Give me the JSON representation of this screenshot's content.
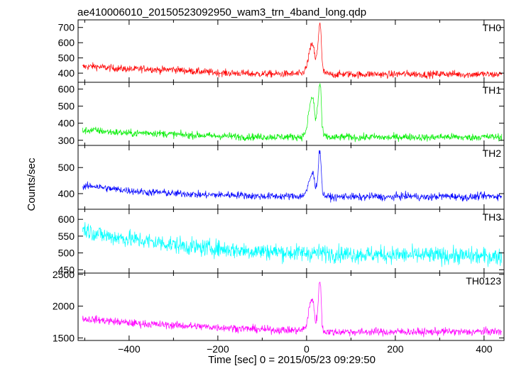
{
  "chart_data": {
    "type": "line",
    "title": "ae410006010_20150523092950_wam3_trn_4band_long.qdp",
    "xlabel": "Time [sec] 0 = 2015/05/23 09:29:50",
    "ylabel": "Counts/sec",
    "xlim": [
      -515,
      445
    ],
    "xticks": [
      -400,
      -200,
      0,
      200,
      400
    ],
    "grid": false,
    "panels": [
      {
        "name": "TH0",
        "color": "#ff0000",
        "ylim": [
          340,
          750
        ],
        "yticks": [
          400,
          500,
          600,
          700
        ],
        "x": [
          -510,
          -480,
          -450,
          -420,
          -390,
          -360,
          -330,
          -300,
          -270,
          -240,
          -210,
          -180,
          -150,
          -120,
          -90,
          -60,
          -30,
          -10,
          0,
          5,
          10,
          15,
          20,
          25,
          28,
          30,
          32,
          35,
          38,
          45,
          60,
          90,
          120,
          150,
          180,
          210,
          240,
          270,
          300,
          330,
          360,
          390,
          420,
          440
        ],
        "y": [
          440,
          445,
          435,
          430,
          425,
          430,
          420,
          425,
          415,
          410,
          405,
          400,
          400,
          395,
          395,
          395,
          395,
          395,
          440,
          520,
          580,
          590,
          480,
          560,
          700,
          740,
          690,
          470,
          410,
          395,
          390,
          395,
          390,
          395,
          390,
          395,
          395,
          390,
          395,
          395,
          390,
          395,
          390,
          395
        ]
      },
      {
        "name": "TH1",
        "color": "#00ee00",
        "ylim": [
          270,
          640
        ],
        "yticks": [
          300,
          400,
          500,
          600
        ],
        "x": [
          -510,
          -480,
          -450,
          -420,
          -390,
          -360,
          -330,
          -300,
          -270,
          -240,
          -210,
          -180,
          -150,
          -120,
          -90,
          -60,
          -30,
          -10,
          0,
          5,
          10,
          15,
          20,
          25,
          28,
          30,
          32,
          35,
          38,
          45,
          60,
          90,
          120,
          150,
          180,
          210,
          240,
          270,
          300,
          330,
          360,
          390,
          420,
          440
        ],
        "y": [
          355,
          360,
          350,
          345,
          340,
          345,
          340,
          335,
          330,
          330,
          325,
          325,
          320,
          320,
          320,
          320,
          320,
          320,
          360,
          470,
          540,
          550,
          410,
          500,
          610,
          630,
          600,
          380,
          330,
          320,
          315,
          320,
          315,
          320,
          315,
          320,
          320,
          315,
          320,
          320,
          315,
          320,
          320,
          320
        ]
      },
      {
        "name": "TH2",
        "color": "#0000ff",
        "ylim": [
          340,
          585
        ],
        "yticks": [
          400,
          500
        ],
        "x": [
          -510,
          -480,
          -450,
          -420,
          -390,
          -360,
          -330,
          -300,
          -270,
          -240,
          -210,
          -180,
          -150,
          -120,
          -90,
          -60,
          -30,
          -10,
          0,
          5,
          10,
          15,
          20,
          25,
          28,
          30,
          32,
          35,
          38,
          45,
          60,
          90,
          120,
          150,
          180,
          210,
          240,
          270,
          300,
          330,
          360,
          390,
          420,
          440
        ],
        "y": [
          425,
          430,
          420,
          415,
          410,
          405,
          405,
          400,
          400,
          395,
          395,
          395,
          395,
          390,
          390,
          390,
          390,
          390,
          410,
          440,
          470,
          480,
          420,
          460,
          550,
          575,
          530,
          420,
          395,
          390,
          385,
          390,
          385,
          390,
          385,
          390,
          390,
          385,
          390,
          390,
          385,
          390,
          390,
          390
        ]
      },
      {
        "name": "TH3",
        "color": "#00ffff",
        "ylim": [
          440,
          630
        ],
        "yticks": [
          450,
          500,
          550,
          600
        ],
        "x": [
          -510,
          -480,
          -450,
          -420,
          -390,
          -360,
          -330,
          -300,
          -270,
          -240,
          -210,
          -180,
          -150,
          -120,
          -90,
          -60,
          -30,
          0,
          30,
          60,
          90,
          120,
          150,
          180,
          210,
          240,
          270,
          300,
          330,
          360,
          390,
          420,
          440
        ],
        "y": [
          575,
          560,
          550,
          545,
          540,
          535,
          530,
          525,
          520,
          515,
          515,
          510,
          508,
          505,
          505,
          503,
          500,
          500,
          500,
          498,
          497,
          496,
          495,
          495,
          494,
          493,
          493,
          492,
          492,
          491,
          490,
          490,
          490
        ]
      },
      {
        "name": "TH0123",
        "color": "#ff00ff",
        "ylim": [
          1460,
          2520
        ],
        "yticks": [
          1500,
          2000,
          2500
        ],
        "x": [
          -510,
          -480,
          -450,
          -420,
          -390,
          -360,
          -330,
          -300,
          -270,
          -240,
          -210,
          -180,
          -150,
          -120,
          -90,
          -60,
          -30,
          -10,
          0,
          5,
          10,
          15,
          20,
          25,
          28,
          30,
          32,
          35,
          38,
          45,
          60,
          90,
          120,
          150,
          180,
          210,
          240,
          270,
          300,
          330,
          360,
          390,
          420,
          440
        ],
        "y": [
          1800,
          1790,
          1770,
          1750,
          1730,
          1720,
          1710,
          1700,
          1690,
          1680,
          1670,
          1660,
          1650,
          1640,
          1630,
          1625,
          1620,
          1620,
          1700,
          1950,
          2080,
          2100,
          1720,
          1900,
          2350,
          2450,
          2250,
          1700,
          1610,
          1600,
          1590,
          1600,
          1590,
          1600,
          1590,
          1600,
          1595,
          1590,
          1600,
          1600,
          1590,
          1600,
          1600,
          1600
        ]
      }
    ]
  }
}
